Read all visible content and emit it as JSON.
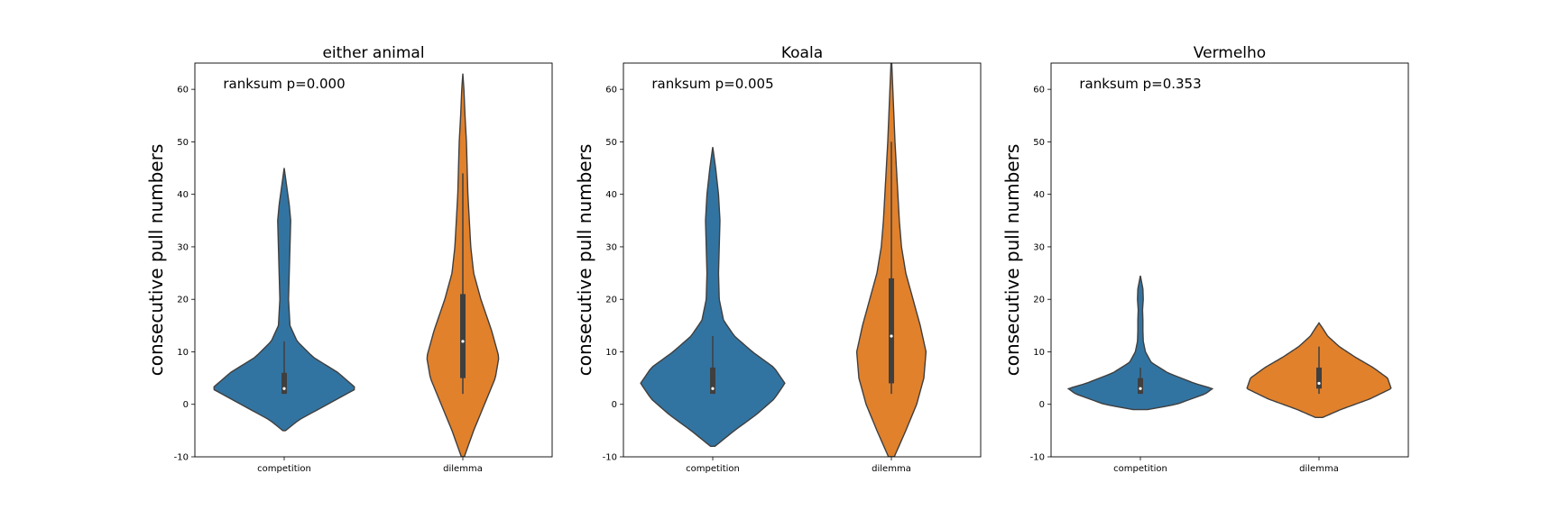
{
  "chart_data": [
    {
      "type": "violin",
      "title": "either animal",
      "ylabel": "consecutive pull numbers",
      "annotation": "ranksum p=0.000",
      "ylim": [
        -10,
        65
      ],
      "yticks": [
        -10,
        0,
        10,
        20,
        30,
        40,
        50,
        60
      ],
      "categories": [
        "competition",
        "dilemma"
      ],
      "violins": [
        {
          "category": "competition",
          "color": "#3274a1",
          "range": [
            -5,
            45
          ],
          "median": 3,
          "q1": 2,
          "q3": 6,
          "whisker_low": 2,
          "whisker_high": 12,
          "density": [
            [
              -5,
              0.02
            ],
            [
              -3,
              0.2
            ],
            [
              0,
              0.6
            ],
            [
              3,
              1.0
            ],
            [
              6,
              0.75
            ],
            [
              9,
              0.4
            ],
            [
              12,
              0.18
            ],
            [
              15,
              0.08
            ],
            [
              20,
              0.06
            ],
            [
              25,
              0.07
            ],
            [
              30,
              0.08
            ],
            [
              35,
              0.09
            ],
            [
              38,
              0.07
            ],
            [
              42,
              0.03
            ],
            [
              45,
              0.0
            ]
          ]
        },
        {
          "category": "dilemma",
          "color": "#e1812c",
          "range": [
            -10,
            63
          ],
          "median": 12,
          "q1": 5,
          "q3": 21,
          "whisker_low": 2,
          "whisker_high": 44,
          "density": [
            [
              -10,
              0.02
            ],
            [
              -5,
              0.15
            ],
            [
              0,
              0.3
            ],
            [
              5,
              0.45
            ],
            [
              9,
              0.5
            ],
            [
              14,
              0.4
            ],
            [
              20,
              0.25
            ],
            [
              25,
              0.15
            ],
            [
              30,
              0.11
            ],
            [
              35,
              0.09
            ],
            [
              40,
              0.07
            ],
            [
              45,
              0.06
            ],
            [
              50,
              0.05
            ],
            [
              55,
              0.03
            ],
            [
              60,
              0.015
            ],
            [
              63,
              0.0
            ]
          ]
        }
      ]
    },
    {
      "type": "violin",
      "title": "Koala",
      "ylabel": "consecutive pull numbers",
      "annotation": "ranksum p=0.005",
      "ylim": [
        -10,
        65
      ],
      "yticks": [
        -10,
        0,
        10,
        20,
        30,
        40,
        50,
        60
      ],
      "categories": [
        "competition",
        "dilemma"
      ],
      "violins": [
        {
          "category": "competition",
          "color": "#3274a1",
          "range": [
            -8,
            49
          ],
          "median": 3,
          "q1": 2,
          "q3": 7,
          "whisker_low": 2,
          "whisker_high": 13,
          "density": [
            [
              -8,
              0.03
            ],
            [
              -5,
              0.3
            ],
            [
              -2,
              0.6
            ],
            [
              1,
              0.85
            ],
            [
              4,
              1.0
            ],
            [
              7,
              0.85
            ],
            [
              10,
              0.55
            ],
            [
              13,
              0.3
            ],
            [
              16,
              0.15
            ],
            [
              20,
              0.09
            ],
            [
              25,
              0.08
            ],
            [
              30,
              0.09
            ],
            [
              35,
              0.1
            ],
            [
              40,
              0.08
            ],
            [
              45,
              0.04
            ],
            [
              49,
              0.0
            ]
          ]
        },
        {
          "category": "dilemma",
          "color": "#e1812c",
          "range": [
            -10,
            65
          ],
          "median": 13,
          "q1": 4,
          "q3": 24,
          "whisker_low": 2,
          "whisker_high": 50,
          "density": [
            [
              -10,
              0.04
            ],
            [
              -5,
              0.2
            ],
            [
              0,
              0.35
            ],
            [
              5,
              0.45
            ],
            [
              10,
              0.48
            ],
            [
              15,
              0.4
            ],
            [
              20,
              0.3
            ],
            [
              25,
              0.2
            ],
            [
              30,
              0.14
            ],
            [
              35,
              0.11
            ],
            [
              40,
              0.09
            ],
            [
              45,
              0.07
            ],
            [
              50,
              0.05
            ],
            [
              55,
              0.035
            ],
            [
              60,
              0.02
            ],
            [
              65,
              0.005
            ]
          ]
        }
      ]
    },
    {
      "type": "violin",
      "title": "Vermelho",
      "ylabel": "consecutive pull numbers",
      "annotation": "ranksum p=0.353",
      "ylim": [
        -10,
        65
      ],
      "yticks": [
        -10,
        0,
        10,
        20,
        30,
        40,
        50,
        60
      ],
      "categories": [
        "competition",
        "dilemma"
      ],
      "violins": [
        {
          "category": "competition",
          "color": "#3274a1",
          "range": [
            -1,
            24.5
          ],
          "median": 3,
          "q1": 2,
          "q3": 5,
          "whisker_low": 2,
          "whisker_high": 7,
          "density": [
            [
              -1,
              0.1
            ],
            [
              0,
              0.5
            ],
            [
              2,
              0.9
            ],
            [
              3,
              1.0
            ],
            [
              4,
              0.75
            ],
            [
              6,
              0.38
            ],
            [
              8,
              0.15
            ],
            [
              10,
              0.07
            ],
            [
              12,
              0.04
            ],
            [
              14,
              0.035
            ],
            [
              16,
              0.035
            ],
            [
              18,
              0.03
            ],
            [
              20,
              0.04
            ],
            [
              22,
              0.035
            ],
            [
              24.5,
              0.0
            ]
          ]
        },
        {
          "category": "dilemma",
          "color": "#e1812c",
          "range": [
            -2.5,
            15.5
          ],
          "median": 4,
          "q1": 3,
          "q3": 7,
          "whisker_low": 2,
          "whisker_high": 11,
          "density": [
            [
              -2.5,
              0.05
            ],
            [
              -1,
              0.3
            ],
            [
              1,
              0.7
            ],
            [
              3,
              1.0
            ],
            [
              5,
              0.95
            ],
            [
              7,
              0.75
            ],
            [
              9,
              0.5
            ],
            [
              11,
              0.28
            ],
            [
              13,
              0.12
            ],
            [
              14.5,
              0.05
            ],
            [
              15.5,
              0.0
            ]
          ]
        }
      ]
    }
  ]
}
